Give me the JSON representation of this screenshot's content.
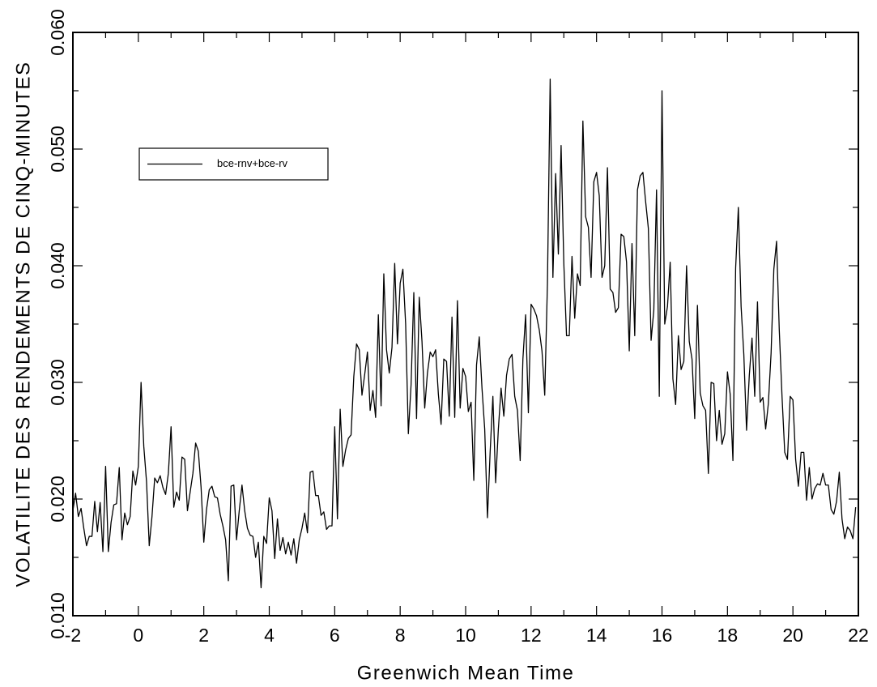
{
  "chart_data": {
    "type": "line",
    "xlabel": "Greenwich Mean Time",
    "ylabel": "VOLATILITE DES RENDEMENTS DE CINQ-MINUTES",
    "legend": "upper left",
    "xlim": [
      -2,
      22
    ],
    "xticks": [
      -2,
      0,
      2,
      4,
      6,
      8,
      10,
      12,
      14,
      16,
      18,
      20,
      22
    ],
    "xminorticks": [
      -1,
      1,
      3,
      5,
      7,
      9,
      11,
      13,
      15,
      17,
      19,
      21
    ],
    "ylim": [
      0.01,
      0.06
    ],
    "yticks": [
      {
        "value": 0.01,
        "label": "0.010"
      },
      {
        "value": 0.02,
        "label": "0.020"
      },
      {
        "value": 0.03,
        "label": "0.030"
      },
      {
        "value": 0.04,
        "label": "0.040"
      },
      {
        "value": 0.05,
        "label": "0.050"
      },
      {
        "value": 0.06,
        "label": "0.060"
      }
    ],
    "yminorticks": [
      0.015,
      0.025,
      0.035,
      0.045,
      0.055
    ],
    "x": [
      -2,
      -1.917,
      -1.833,
      -1.75,
      -1.667,
      -1.583,
      -1.5,
      -1.417,
      -1.333,
      -1.25,
      -1.167,
      -1.083,
      -1,
      -0.917,
      -0.833,
      -0.75,
      -0.667,
      -0.583,
      -0.5,
      -0.417,
      -0.333,
      -0.25,
      -0.167,
      -0.083,
      0,
      0.083,
      0.167,
      0.25,
      0.333,
      0.417,
      0.5,
      0.583,
      0.667,
      0.75,
      0.833,
      0.917,
      1,
      1.083,
      1.167,
      1.25,
      1.333,
      1.417,
      1.5,
      1.583,
      1.667,
      1.75,
      1.833,
      1.917,
      2,
      2.083,
      2.167,
      2.25,
      2.333,
      2.417,
      2.5,
      2.583,
      2.667,
      2.75,
      2.833,
      2.917,
      3,
      3.083,
      3.167,
      3.25,
      3.333,
      3.417,
      3.5,
      3.583,
      3.667,
      3.75,
      3.833,
      3.917,
      4,
      4.083,
      4.167,
      4.25,
      4.333,
      4.417,
      4.5,
      4.583,
      4.667,
      4.75,
      4.833,
      4.917,
      5,
      5.083,
      5.167,
      5.25,
      5.333,
      5.417,
      5.5,
      5.583,
      5.667,
      5.75,
      5.833,
      5.917,
      6,
      6.083,
      6.167,
      6.25,
      6.333,
      6.417,
      6.5,
      6.583,
      6.667,
      6.75,
      6.833,
      6.917,
      7,
      7.083,
      7.167,
      7.25,
      7.333,
      7.417,
      7.5,
      7.583,
      7.667,
      7.75,
      7.833,
      7.917,
      8,
      8.083,
      8.167,
      8.25,
      8.333,
      8.417,
      8.5,
      8.583,
      8.667,
      8.75,
      8.833,
      8.917,
      9,
      9.083,
      9.167,
      9.25,
      9.333,
      9.417,
      9.5,
      9.583,
      9.667,
      9.75,
      9.833,
      9.917,
      10,
      10.083,
      10.167,
      10.25,
      10.333,
      10.417,
      10.5,
      10.583,
      10.667,
      10.75,
      10.833,
      10.917,
      11,
      11.083,
      11.167,
      11.25,
      11.333,
      11.417,
      11.5,
      11.583,
      11.667,
      11.75,
      11.833,
      11.917,
      12,
      12.083,
      12.167,
      12.25,
      12.333,
      12.417,
      12.5,
      12.583,
      12.667,
      12.75,
      12.833,
      12.917,
      13,
      13.083,
      13.167,
      13.25,
      13.333,
      13.417,
      13.5,
      13.583,
      13.667,
      13.75,
      13.833,
      13.917,
      14,
      14.083,
      14.167,
      14.25,
      14.333,
      14.417,
      14.5,
      14.583,
      14.667,
      14.75,
      14.833,
      14.917,
      15,
      15.083,
      15.167,
      15.25,
      15.333,
      15.417,
      15.5,
      15.583,
      15.667,
      15.75,
      15.833,
      15.917,
      16,
      16.083,
      16.167,
      16.25,
      16.333,
      16.417,
      16.5,
      16.583,
      16.667,
      16.75,
      16.833,
      16.917,
      17,
      17.083,
      17.167,
      17.25,
      17.333,
      17.417,
      17.5,
      17.583,
      17.667,
      17.75,
      17.833,
      17.917,
      18,
      18.083,
      18.167,
      18.25,
      18.333,
      18.417,
      18.5,
      18.583,
      18.667,
      18.75,
      18.833,
      18.917,
      19,
      19.083,
      19.167,
      19.25,
      19.333,
      19.417,
      19.5,
      19.583,
      19.667,
      19.75,
      19.833,
      19.917,
      20,
      20.083,
      20.167,
      20.25,
      20.333,
      20.417,
      20.5,
      20.583,
      20.667,
      20.75,
      20.833,
      20.917,
      21,
      21.083,
      21.167,
      21.25,
      21.333,
      21.417,
      21.5,
      21.583,
      21.667,
      21.75,
      21.833,
      21.917
    ],
    "series": [
      {
        "name": "bce-rnv+bce-rv",
        "color": "#000000",
        "values": [
          0.019,
          0.0205,
          0.0185,
          0.0192,
          0.0175,
          0.016,
          0.0168,
          0.0168,
          0.0198,
          0.0172,
          0.0197,
          0.0155,
          0.0228,
          0.0155,
          0.018,
          0.0195,
          0.0196,
          0.0227,
          0.0165,
          0.0188,
          0.0178,
          0.0185,
          0.0224,
          0.0212,
          0.0228,
          0.03,
          0.0245,
          0.0215,
          0.016,
          0.0185,
          0.0218,
          0.0214,
          0.022,
          0.021,
          0.0204,
          0.0222,
          0.0262,
          0.0193,
          0.0206,
          0.0199,
          0.0236,
          0.0234,
          0.019,
          0.0206,
          0.0222,
          0.0248,
          0.0241,
          0.021,
          0.0163,
          0.0191,
          0.0208,
          0.0211,
          0.0202,
          0.0201,
          0.0187,
          0.0177,
          0.0165,
          0.013,
          0.0211,
          0.0212,
          0.0165,
          0.019,
          0.0212,
          0.019,
          0.0175,
          0.0169,
          0.0168,
          0.015,
          0.0163,
          0.0124,
          0.0168,
          0.0162,
          0.0201,
          0.019,
          0.0149,
          0.0183,
          0.0156,
          0.0167,
          0.0153,
          0.0163,
          0.0152,
          0.0166,
          0.0145,
          0.0165,
          0.0175,
          0.0188,
          0.0171,
          0.0223,
          0.0224,
          0.0203,
          0.0203,
          0.0186,
          0.0189,
          0.0174,
          0.0177,
          0.0177,
          0.0262,
          0.0183,
          0.0277,
          0.0228,
          0.0242,
          0.0252,
          0.0255,
          0.0305,
          0.0333,
          0.0328,
          0.0289,
          0.0307,
          0.0326,
          0.0276,
          0.0293,
          0.027,
          0.0358,
          0.028,
          0.0393,
          0.0328,
          0.0308,
          0.033,
          0.0402,
          0.0333,
          0.0385,
          0.0397,
          0.035,
          0.0256,
          0.0298,
          0.0377,
          0.0269,
          0.0373,
          0.0335,
          0.0278,
          0.0308,
          0.0326,
          0.0322,
          0.0328,
          0.029,
          0.0264,
          0.032,
          0.0318,
          0.0271,
          0.0356,
          0.027,
          0.037,
          0.0278,
          0.0312,
          0.0305,
          0.0275,
          0.0283,
          0.0216,
          0.0315,
          0.0339,
          0.0295,
          0.026,
          0.0184,
          0.0241,
          0.0288,
          0.0214,
          0.026,
          0.0295,
          0.0271,
          0.0306,
          0.032,
          0.0324,
          0.0288,
          0.0276,
          0.0233,
          0.032,
          0.0358,
          0.0274,
          0.0367,
          0.0363,
          0.0357,
          0.0345,
          0.0327,
          0.0289,
          0.0385,
          0.056,
          0.039,
          0.0479,
          0.041,
          0.0503,
          0.0402,
          0.034,
          0.034,
          0.0408,
          0.0355,
          0.0393,
          0.0383,
          0.0524,
          0.0442,
          0.0433,
          0.039,
          0.0472,
          0.048,
          0.046,
          0.039,
          0.04,
          0.0484,
          0.038,
          0.0377,
          0.036,
          0.0364,
          0.0427,
          0.0425,
          0.0403,
          0.0327,
          0.0419,
          0.034,
          0.0465,
          0.0477,
          0.048,
          0.0455,
          0.0432,
          0.0336,
          0.0362,
          0.0465,
          0.0288,
          0.055,
          0.035,
          0.0365,
          0.0403,
          0.0303,
          0.0281,
          0.034,
          0.0311,
          0.0318,
          0.04,
          0.0335,
          0.032,
          0.0269,
          0.0366,
          0.0291,
          0.028,
          0.0276,
          0.0222,
          0.03,
          0.0299,
          0.025,
          0.0276,
          0.0247,
          0.0256,
          0.0309,
          0.029,
          0.0233,
          0.0398,
          0.045,
          0.0365,
          0.0324,
          0.0259,
          0.0306,
          0.0338,
          0.0288,
          0.0369,
          0.0283,
          0.0287,
          0.026,
          0.0282,
          0.0325,
          0.0397,
          0.0421,
          0.0345,
          0.0288,
          0.024,
          0.0234,
          0.0288,
          0.0285,
          0.0234,
          0.0211,
          0.024,
          0.024,
          0.0199,
          0.0227,
          0.02,
          0.0209,
          0.0213,
          0.0212,
          0.0222,
          0.0212,
          0.0212,
          0.0191,
          0.0187,
          0.0198,
          0.0223,
          0.0183,
          0.0166,
          0.0176,
          0.0173,
          0.0166,
          0.0193
        ]
      }
    ]
  }
}
